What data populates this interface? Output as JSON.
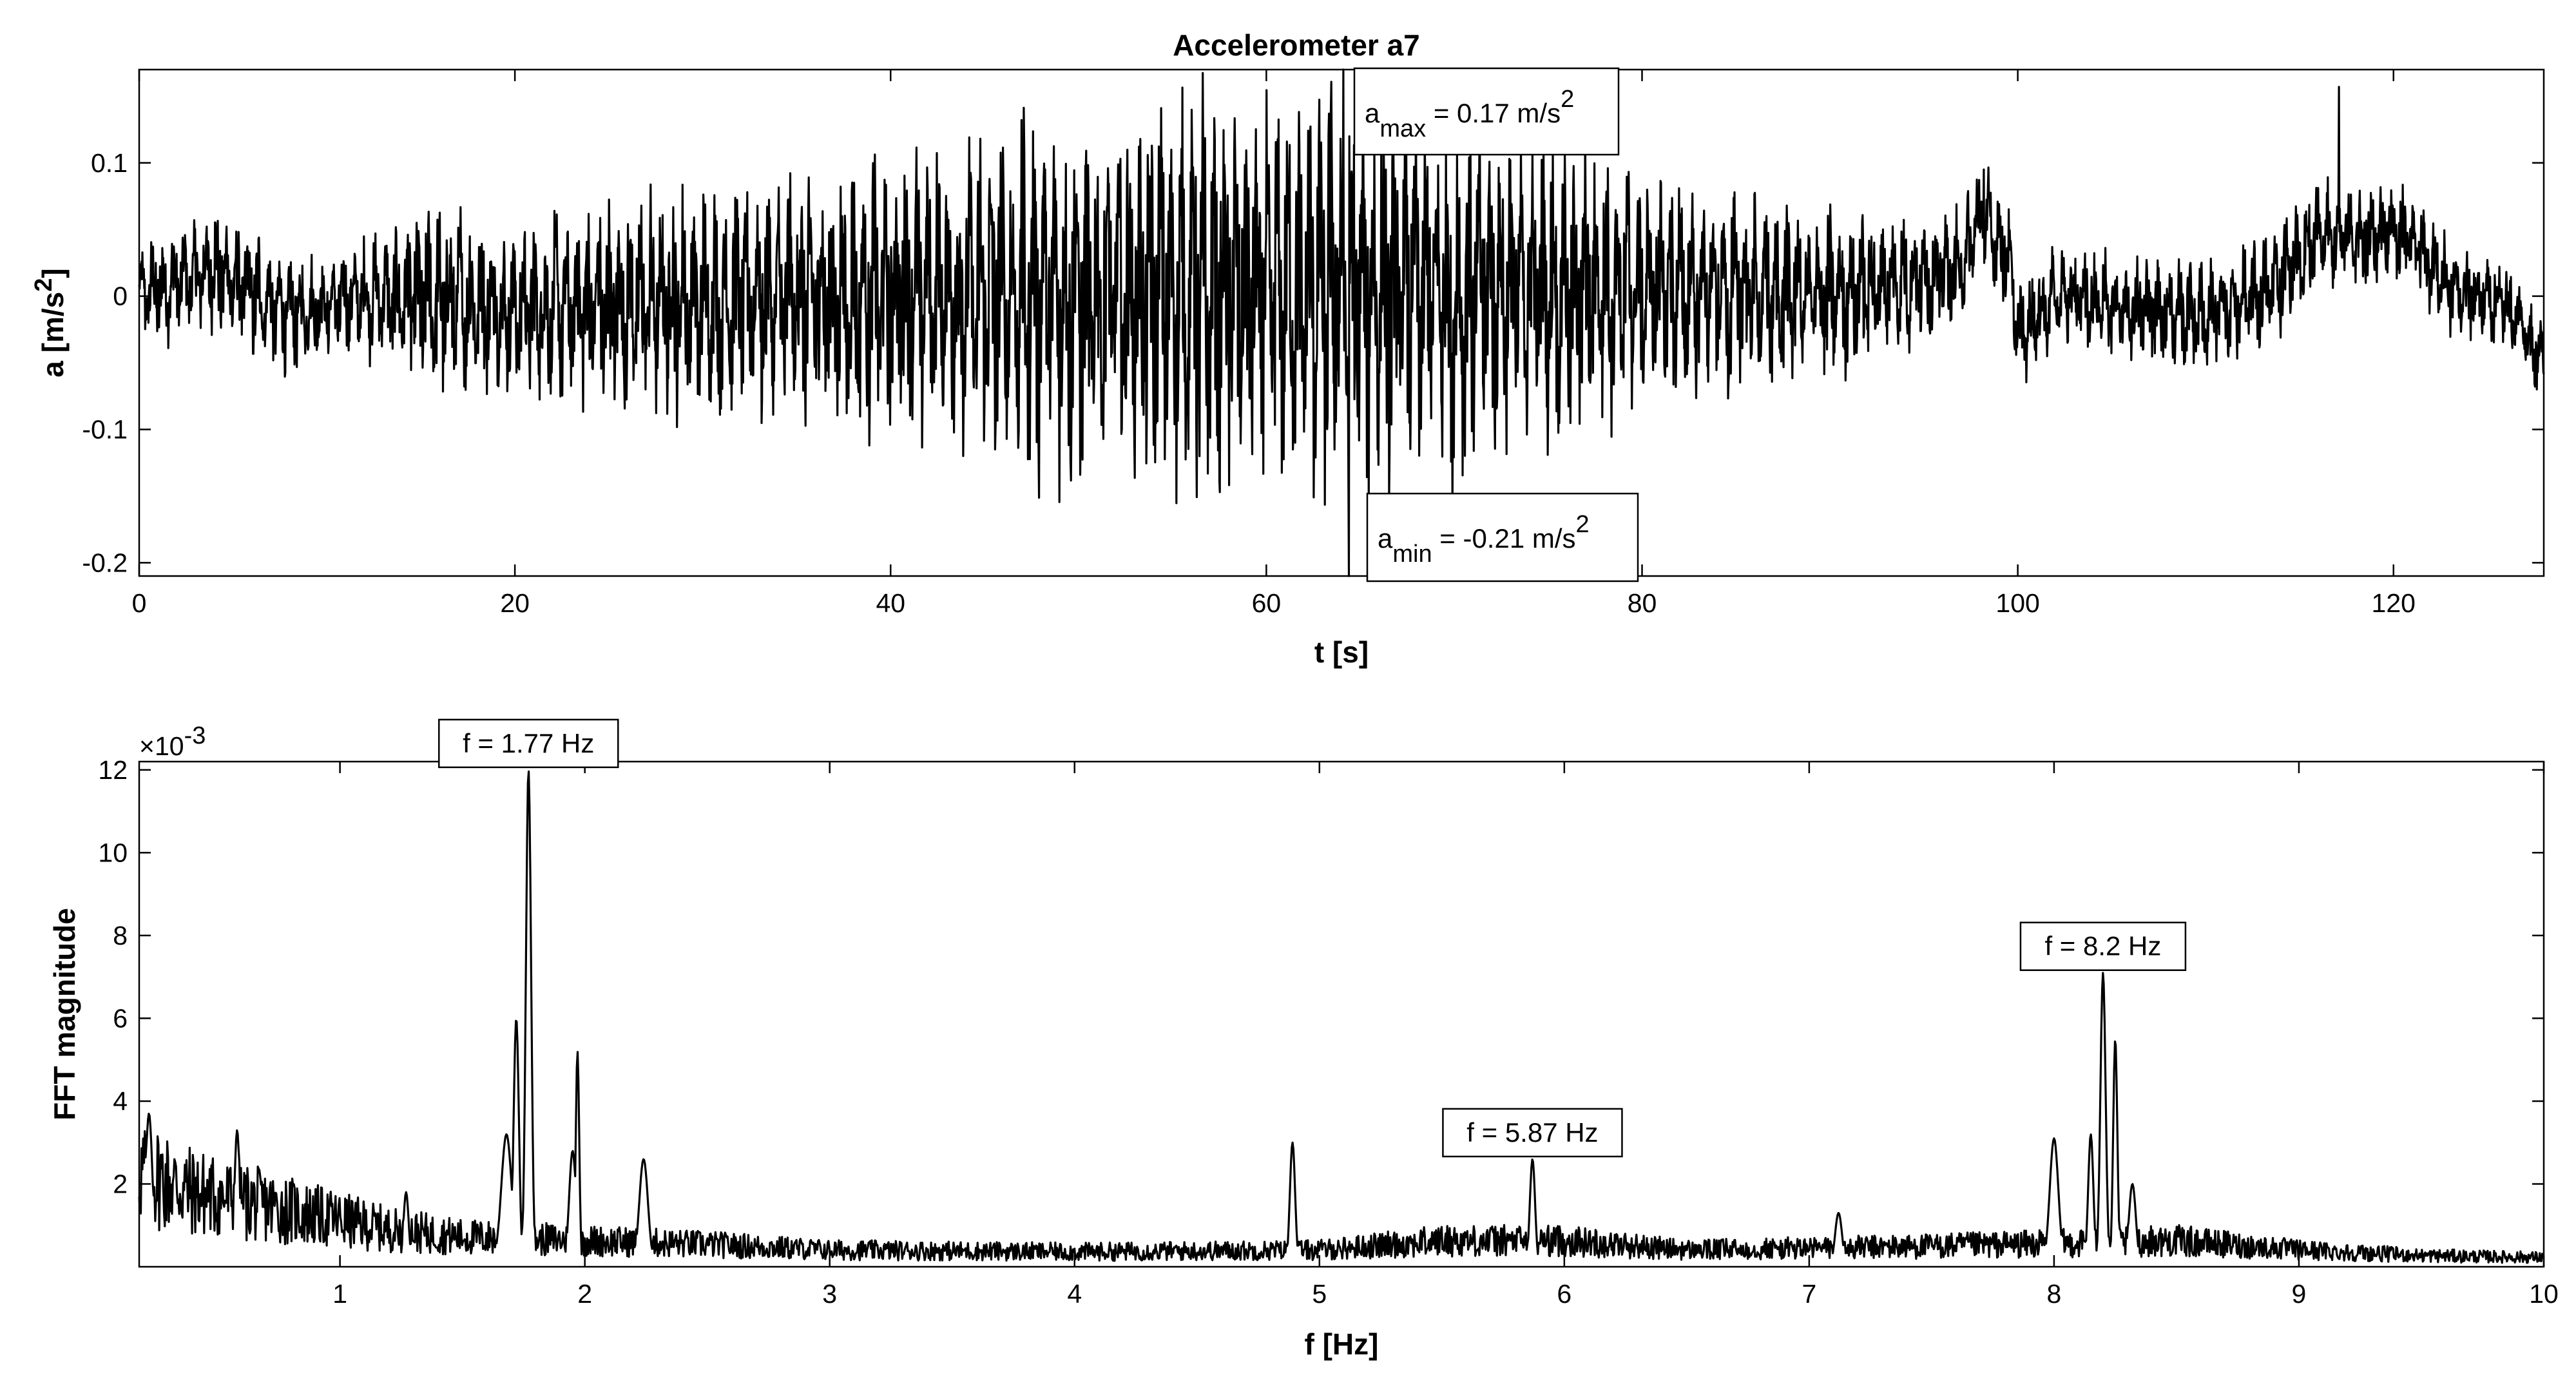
{
  "figure": {
    "title": "Accelerometer a7"
  },
  "chart_data": [
    {
      "type": "line",
      "title": "Accelerometer a7",
      "xlabel": "t [s]",
      "ylabel_main": "a [m/s",
      "ylabel_sup": "2",
      "ylabel_end": "]",
      "xlim": [
        0,
        128
      ],
      "ylim": [
        -0.21,
        0.17
      ],
      "xticks": [
        0,
        20,
        40,
        60,
        80,
        100,
        120
      ],
      "yticks": [
        -0.2,
        -0.1,
        0,
        0.1
      ],
      "ytick_labels": [
        "-0.2",
        "-0.1",
        "0",
        "0.1"
      ],
      "grid": false,
      "series": [
        {
          "color": "#000000",
          "envelope_points": [
            [
              0,
              0.035
            ],
            [
              3,
              0.04
            ],
            [
              6,
              0.045
            ],
            [
              8,
              0.04
            ],
            [
              10,
              0.035
            ],
            [
              13,
              0.045
            ],
            [
              16,
              0.07
            ],
            [
              20,
              0.06
            ],
            [
              25,
              0.075
            ],
            [
              30,
              0.08
            ],
            [
              35,
              0.09
            ],
            [
              40,
              0.095
            ],
            [
              45,
              0.11
            ],
            [
              48,
              0.13
            ],
            [
              52,
              0.12
            ],
            [
              56,
              0.145
            ],
            [
              60,
              0.13
            ],
            [
              62,
              0.125
            ],
            [
              64,
              0.165
            ],
            [
              66,
              0.13
            ],
            [
              70,
              0.12
            ],
            [
              75,
              0.11
            ],
            [
              80,
              0.085
            ],
            [
              85,
              0.07
            ],
            [
              90,
              0.06
            ],
            [
              95,
              0.045
            ],
            [
              100,
              0.035
            ],
            [
              105,
              0.035
            ],
            [
              110,
              0.04
            ],
            [
              115,
              0.04
            ],
            [
              120,
              0.035
            ],
            [
              124,
              0.03
            ],
            [
              128,
              0.03
            ]
          ],
          "baseline_points": [
            [
              0,
              0.0
            ],
            [
              4,
              0.02
            ],
            [
              8,
              -0.015
            ],
            [
              12,
              0.0
            ],
            [
              20,
              -0.01
            ],
            [
              40,
              0.0
            ],
            [
              60,
              0.0
            ],
            [
              80,
              0.005
            ],
            [
              90,
              0.0
            ],
            [
              97,
              0.02
            ],
            [
              98,
              0.06
            ],
            [
              99.5,
              0.03
            ],
            [
              100,
              -0.03
            ],
            [
              102,
              0.0
            ],
            [
              110,
              -0.015
            ],
            [
              113,
              0.0
            ],
            [
              116,
              0.045
            ],
            [
              121,
              0.045
            ],
            [
              123,
              0.005
            ],
            [
              126,
              -0.005
            ],
            [
              128,
              -0.05
            ]
          ],
          "spikes": [
            {
              "x": 64.1,
              "y": 0.17
            },
            {
              "x": 64.4,
              "y": -0.21
            },
            {
              "x": 117.1,
              "y": 0.157
            },
            {
              "x": 98.2,
              "y": 0.095
            },
            {
              "x": 69.9,
              "y": -0.155
            }
          ]
        }
      ],
      "annotations": [
        {
          "x": 64.1,
          "y": 0.17,
          "label_main": "a",
          "label_sub": "max",
          "label_rest": " = 0.17 m/s",
          "label_sup": "2"
        },
        {
          "x": 64.4,
          "y": -0.21,
          "label_main": "a",
          "label_sub": "min",
          "label_rest": " = -0.21 m/s",
          "label_sup": "2"
        }
      ]
    },
    {
      "type": "line",
      "xlabel": "f [Hz]",
      "ylabel": "FFT magnitude",
      "y_exponent_base": "×10",
      "y_exponent_power": "-3",
      "xlim": [
        0.18,
        10
      ],
      "ylim": [
        0,
        12.2
      ],
      "xticks": [
        1,
        2,
        3,
        4,
        5,
        6,
        7,
        8,
        9,
        10
      ],
      "yticks": [
        2,
        4,
        6,
        8,
        10,
        12
      ],
      "grid": false,
      "series": [
        {
          "color": "#000000",
          "base_points": [
            [
              0.18,
              2.6
            ],
            [
              0.4,
              2.0
            ],
            [
              0.8,
              1.5
            ],
            [
              1.2,
              1.0
            ],
            [
              1.5,
              0.8
            ],
            [
              2.5,
              0.6
            ],
            [
              3.0,
              0.45
            ],
            [
              4.0,
              0.4
            ],
            [
              5.0,
              0.45
            ],
            [
              5.5,
              0.7
            ],
            [
              6.0,
              0.7
            ],
            [
              6.5,
              0.45
            ],
            [
              7.0,
              0.5
            ],
            [
              7.5,
              0.55
            ],
            [
              8.5,
              0.7
            ],
            [
              9.0,
              0.45
            ],
            [
              9.5,
              0.3
            ],
            [
              10,
              0.25
            ]
          ],
          "peaks": [
            {
              "x": 0.22,
              "y": 3.7,
              "w": 0.02
            },
            {
              "x": 0.58,
              "y": 3.3,
              "w": 0.015
            },
            {
              "x": 1.27,
              "y": 1.8,
              "w": 0.015
            },
            {
              "x": 1.68,
              "y": 3.2,
              "w": 0.03
            },
            {
              "x": 1.72,
              "y": 6.0,
              "w": 0.015
            },
            {
              "x": 1.77,
              "y": 12.0,
              "w": 0.015
            },
            {
              "x": 1.95,
              "y": 2.8,
              "w": 0.02
            },
            {
              "x": 1.97,
              "y": 5.2,
              "w": 0.01
            },
            {
              "x": 2.24,
              "y": 2.6,
              "w": 0.025
            },
            {
              "x": 4.89,
              "y": 3.0,
              "w": 0.015
            },
            {
              "x": 5.87,
              "y": 2.6,
              "w": 0.015
            },
            {
              "x": 7.12,
              "y": 1.3,
              "w": 0.02
            },
            {
              "x": 8.0,
              "y": 3.1,
              "w": 0.025
            },
            {
              "x": 8.15,
              "y": 3.2,
              "w": 0.015
            },
            {
              "x": 8.2,
              "y": 7.1,
              "w": 0.015
            },
            {
              "x": 8.25,
              "y": 5.5,
              "w": 0.012
            },
            {
              "x": 8.32,
              "y": 2.0,
              "w": 0.02
            }
          ]
        }
      ],
      "annotations": [
        {
          "x": 1.77,
          "y": 12.0,
          "label": "f = 1.77 Hz"
        },
        {
          "x": 5.87,
          "y": 2.6,
          "label": "f = 5.87 Hz"
        },
        {
          "x": 8.2,
          "y": 7.1,
          "label": "f = 8.2 Hz"
        }
      ]
    }
  ]
}
